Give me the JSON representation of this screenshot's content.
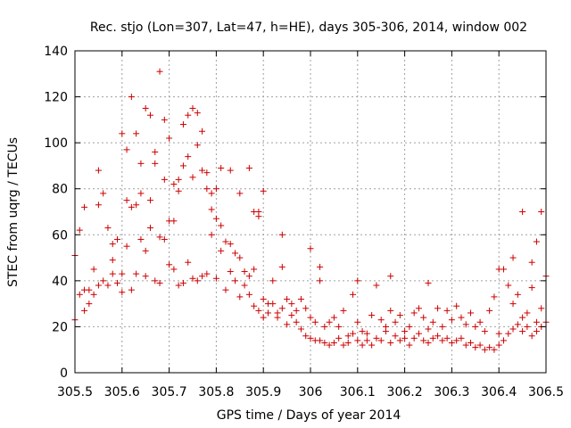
{
  "chart_data": {
    "type": "scatter",
    "title": "Rec. stjo (Lon=307, Lat=47, h=HE), days 305-306, 2014, window 002",
    "xlabel": "GPS time / Days of year 2014",
    "ylabel": "STEC from uqrg / TECUs",
    "xlim": [
      305.5,
      306.5
    ],
    "ylim": [
      0,
      140
    ],
    "xticks": [
      305.5,
      305.6,
      305.7,
      305.8,
      305.9,
      306,
      306.1,
      306.2,
      306.3,
      306.4,
      306.5
    ],
    "xtick_labels": [
      "305.5",
      "305.6",
      "305.7",
      "305.8",
      "305.9",
      "306",
      "306.1",
      "306.2",
      "306.3",
      "306.4",
      "306.5"
    ],
    "yticks": [
      0,
      20,
      40,
      60,
      80,
      100,
      120,
      140
    ],
    "ytick_labels": [
      "0",
      "20",
      "40",
      "60",
      "80",
      "100",
      "120",
      "140"
    ],
    "grid": true,
    "marker": "+",
    "color": "#cc0000",
    "series": [
      {
        "x": [
          305.5,
          305.5,
          305.51,
          305.51,
          305.52,
          305.52,
          305.53,
          305.53,
          305.54,
          305.54,
          305.55,
          305.55,
          305.56,
          305.56,
          305.57,
          305.57,
          305.58,
          305.58,
          305.59,
          305.59,
          305.6,
          305.6,
          305.61,
          305.61,
          305.62,
          305.62,
          305.63,
          305.63,
          305.64,
          305.64,
          305.65,
          305.65,
          305.66,
          305.66,
          305.67,
          305.67,
          305.68,
          305.68,
          305.69,
          305.69,
          305.7,
          305.7,
          305.71,
          305.71,
          305.72,
          305.72,
          305.73,
          305.73,
          305.74,
          305.74,
          305.75,
          305.75,
          305.76,
          305.76,
          305.77,
          305.77,
          305.78,
          305.78,
          305.79,
          305.79,
          305.8,
          305.8,
          305.81,
          305.81,
          305.82,
          305.82,
          305.83,
          305.83,
          305.84,
          305.84,
          305.85,
          305.85,
          305.86,
          305.86,
          305.87,
          305.87,
          305.88,
          305.88,
          305.89,
          305.89,
          305.9,
          305.9,
          305.91,
          305.91,
          305.92,
          305.92,
          305.93,
          305.93,
          305.94,
          305.94,
          305.95,
          305.95,
          305.96,
          305.96,
          305.97,
          305.97,
          305.98,
          305.98,
          305.99,
          305.99,
          306.0,
          306.0,
          306.01,
          306.01,
          306.02,
          306.02,
          306.03,
          306.03,
          306.04,
          306.04,
          306.05,
          306.05,
          306.06,
          306.06,
          306.07,
          306.07,
          306.08,
          306.08,
          306.09,
          306.09,
          306.1,
          306.1,
          306.11,
          306.11,
          306.12,
          306.12,
          306.13,
          306.13,
          306.14,
          306.14,
          306.15,
          306.15,
          306.16,
          306.16,
          306.17,
          306.17,
          306.18,
          306.18,
          306.19,
          306.19,
          306.2,
          306.2,
          306.21,
          306.21,
          306.22,
          306.22,
          306.23,
          306.23,
          306.24,
          306.24,
          306.25,
          306.25,
          306.26,
          306.26,
          306.27,
          306.27,
          306.28,
          306.28,
          306.29,
          306.29,
          306.3,
          306.3,
          306.31,
          306.31,
          306.32,
          306.32,
          306.33,
          306.33,
          306.34,
          306.34,
          306.35,
          306.35,
          306.36,
          306.36,
          306.37,
          306.37,
          306.38,
          306.38,
          306.39,
          306.39,
          306.4,
          306.4,
          306.41,
          306.41,
          306.42,
          306.42,
          306.43,
          306.43,
          306.44,
          306.44,
          306.45,
          306.45,
          306.46,
          306.46,
          306.47,
          306.47,
          306.48,
          306.48,
          306.49,
          306.49,
          306.5
        ],
        "y": [
          51,
          23,
          62,
          34,
          36,
          27,
          36,
          30,
          45,
          34,
          73,
          38,
          78,
          40,
          63,
          38,
          43,
          49,
          39,
          58,
          43,
          35,
          55,
          75,
          72,
          36,
          73,
          43,
          91,
          58,
          53,
          42,
          75,
          63,
          91,
          40,
          59,
          39,
          84,
          58,
          66,
          47,
          66,
          45,
          79,
          38,
          90,
          39,
          94,
          48,
          85,
          41,
          99,
          40,
          88,
          42,
          87,
          43,
          71,
          60,
          67,
          41,
          64,
          53,
          57,
          36,
          56,
          44,
          52,
          40,
          50,
          33,
          44,
          38,
          42,
          34,
          45,
          29,
          70,
          27,
          32,
          24,
          30,
          26,
          40,
          30,
          26,
          24,
          46,
          28,
          32,
          21,
          30,
          25,
          27,
          22,
          32,
          19,
          28,
          16,
          24,
          15,
          22,
          14,
          40,
          14,
          20,
          13,
          22,
          12,
          24,
          13,
          20,
          15,
          27,
          12,
          16,
          13,
          34,
          17,
          22,
          14,
          18,
          12,
          17,
          14,
          25,
          12,
          38,
          15,
          23,
          14,
          20,
          18,
          27,
          13,
          22,
          16,
          25,
          14,
          18,
          15,
          20,
          12,
          26,
          15,
          28,
          17,
          24,
          14,
          19,
          13,
          22,
          15,
          28,
          16,
          20,
          14,
          27,
          15,
          23,
          13,
          29,
          14,
          24,
          15,
          21,
          12,
          26,
          13,
          20,
          11,
          22,
          12,
          18,
          10,
          27,
          11,
          33,
          10,
          17,
          12,
          45,
          14,
          38,
          17,
          30,
          19,
          34,
          21,
          24,
          18,
          26,
          20,
          37,
          16,
          22,
          18,
          28,
          20,
          22
        ]
      },
      {
        "x": [
          305.52,
          305.55,
          305.58,
          305.6,
          305.61,
          305.62,
          305.63,
          305.64,
          305.65,
          305.66,
          305.67,
          305.68,
          305.69,
          305.7,
          305.71,
          305.72,
          305.73,
          305.74,
          305.75,
          305.76,
          305.77,
          305.78,
          305.79,
          305.8,
          305.81,
          305.83,
          305.85,
          305.87,
          305.88,
          305.89,
          305.9,
          305.94,
          306.0,
          306.02,
          306.1,
          306.17,
          306.25,
          306.4,
          306.43,
          306.45,
          306.47,
          306.49,
          306.5,
          306.48
        ],
        "y": [
          72,
          88,
          56,
          104,
          97,
          120,
          104,
          78,
          115,
          112,
          96,
          131,
          110,
          102,
          82,
          84,
          108,
          112,
          115,
          113,
          105,
          80,
          78,
          80,
          89,
          88,
          78,
          89,
          70,
          68,
          79,
          60,
          54,
          46,
          40,
          42,
          39,
          45,
          50,
          70,
          48,
          70,
          42,
          57
        ]
      }
    ]
  }
}
